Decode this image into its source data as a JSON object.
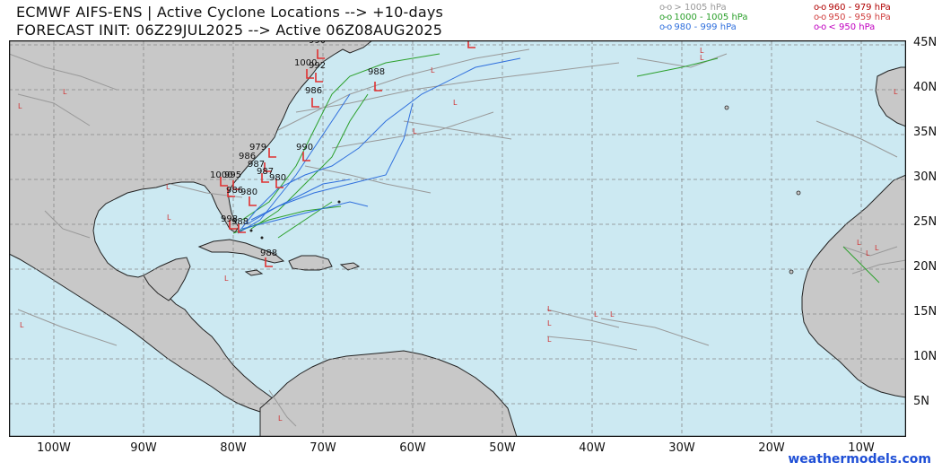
{
  "header": {
    "title_line1": "ECMWF AIFS-ENS | Active Cyclone Locations --> +10-days",
    "title_line2": "FORECAST INIT: 06Z29JUL2025 --> Active 06Z08AUG2025"
  },
  "legend": [
    {
      "marker": "o-o",
      "label": "> 1005 hPa",
      "color": "#999999"
    },
    {
      "marker": "o-o",
      "label": "1000 - 1005 hPa",
      "color": "#2ca02c"
    },
    {
      "marker": "o-o",
      "label": "980 - 999 hPa",
      "color": "#2f6fdd"
    },
    {
      "marker": "o-o",
      "label": "960 - 979 hPa",
      "color": "#b00000"
    },
    {
      "marker": "o-o",
      "label": "950 - 959 hPa",
      "color": "#d04040"
    },
    {
      "marker": "o-o",
      "label": "< 950 hPa",
      "color": "#c000c0"
    }
  ],
  "map": {
    "ocean_color": "#cce9f2",
    "land_color": "#c8c8c8",
    "lat_labels": [
      "45N",
      "40N",
      "35N",
      "30N",
      "25N",
      "20N",
      "15N",
      "10N",
      "5N"
    ],
    "lon_labels": [
      "100W",
      "90W",
      "80W",
      "70W",
      "60W",
      "50W",
      "40W",
      "30W",
      "20W",
      "10W"
    ]
  },
  "pressure_labels": [
    "990",
    "1000",
    "1000",
    "992",
    "988",
    "986",
    "979",
    "990",
    "986",
    "987",
    "987",
    "1000",
    "995",
    "980",
    "986",
    "980",
    "998",
    "988",
    "988"
  ],
  "credit": "weathermodels.com"
}
